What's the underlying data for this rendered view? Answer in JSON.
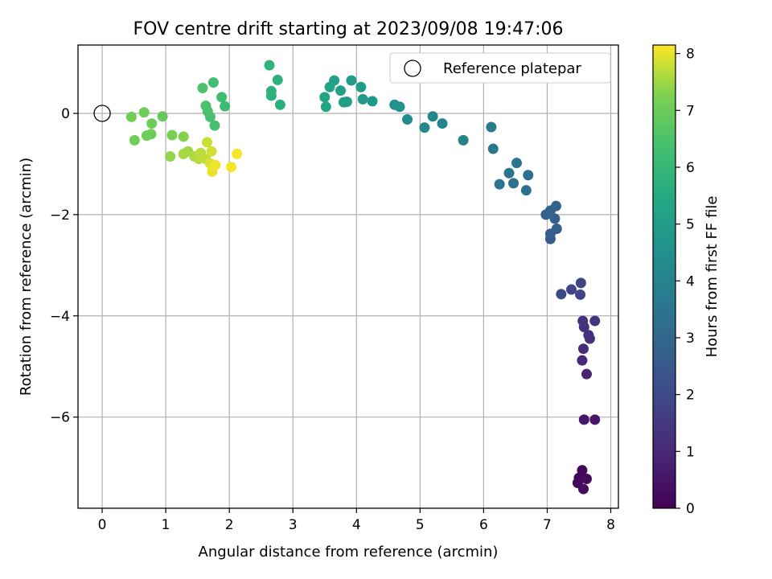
{
  "chart_data": {
    "type": "scatter",
    "title": "FOV centre drift starting at 2023/09/08 19:47:06",
    "xlabel": "Angular distance from reference (arcmin)",
    "ylabel": "Rotation from reference (arcmin)",
    "xlim": [
      -0.38,
      8.12
    ],
    "ylim": [
      -7.8,
      1.35
    ],
    "xticks": [
      0,
      1,
      2,
      3,
      4,
      5,
      6,
      7,
      8
    ],
    "yticks": [
      0,
      -2,
      -4,
      -6
    ],
    "grid": true,
    "legend": {
      "placement": "top-right",
      "entries": [
        "Reference platepar"
      ]
    },
    "reference_point": {
      "x": 0,
      "y": 0
    },
    "colorbar": {
      "label": "Hours from first FF file",
      "range": [
        0,
        8.15
      ],
      "ticks": [
        0,
        1,
        2,
        3,
        4,
        5,
        6,
        7,
        8
      ],
      "colormap": "viridis"
    },
    "series": [
      {
        "points": [
          {
            "x": 7.5,
            "y": -7.2,
            "h": 0.1
          },
          {
            "x": 7.55,
            "y": -7.05,
            "h": 0.15
          },
          {
            "x": 7.48,
            "y": -7.3,
            "h": 0.2
          },
          {
            "x": 7.62,
            "y": -7.22,
            "h": 0.25
          },
          {
            "x": 7.57,
            "y": -7.42,
            "h": 0.3
          },
          {
            "x": 7.58,
            "y": -6.05,
            "h": 0.55
          },
          {
            "x": 7.75,
            "y": -6.05,
            "h": 0.6
          },
          {
            "x": 7.62,
            "y": -5.15,
            "h": 0.9
          },
          {
            "x": 7.55,
            "y": -4.88,
            "h": 1.0
          },
          {
            "x": 7.57,
            "y": -4.65,
            "h": 1.1
          },
          {
            "x": 7.67,
            "y": -4.45,
            "h": 1.2
          },
          {
            "x": 7.65,
            "y": -4.38,
            "h": 1.25
          },
          {
            "x": 7.58,
            "y": -4.22,
            "h": 1.3
          },
          {
            "x": 7.56,
            "y": -4.1,
            "h": 1.35
          },
          {
            "x": 7.75,
            "y": -4.1,
            "h": 1.4
          },
          {
            "x": 7.52,
            "y": -3.58,
            "h": 1.8
          },
          {
            "x": 7.53,
            "y": -3.35,
            "h": 1.85
          },
          {
            "x": 7.38,
            "y": -3.48,
            "h": 1.9
          },
          {
            "x": 7.22,
            "y": -3.57,
            "h": 2.0
          },
          {
            "x": 7.05,
            "y": -2.48,
            "h": 2.6
          },
          {
            "x": 7.05,
            "y": -2.38,
            "h": 2.65
          },
          {
            "x": 7.15,
            "y": -2.28,
            "h": 2.7
          },
          {
            "x": 7.12,
            "y": -2.08,
            "h": 2.75
          },
          {
            "x": 6.98,
            "y": -2.0,
            "h": 2.8
          },
          {
            "x": 7.05,
            "y": -1.92,
            "h": 2.85
          },
          {
            "x": 7.14,
            "y": -1.83,
            "h": 2.9
          },
          {
            "x": 6.7,
            "y": -1.22,
            "h": 3.3
          },
          {
            "x": 6.67,
            "y": -1.52,
            "h": 3.35
          },
          {
            "x": 6.47,
            "y": -1.38,
            "h": 3.4
          },
          {
            "x": 6.4,
            "y": -1.18,
            "h": 3.45
          },
          {
            "x": 6.52,
            "y": -0.98,
            "h": 3.5
          },
          {
            "x": 6.25,
            "y": -1.4,
            "h": 3.55
          },
          {
            "x": 6.15,
            "y": -0.7,
            "h": 3.7
          },
          {
            "x": 6.12,
            "y": -0.27,
            "h": 3.75
          },
          {
            "x": 5.68,
            "y": -0.53,
            "h": 3.95
          },
          {
            "x": 5.35,
            "y": -0.2,
            "h": 4.1
          },
          {
            "x": 5.2,
            "y": -0.06,
            "h": 4.2
          },
          {
            "x": 5.07,
            "y": -0.28,
            "h": 4.25
          },
          {
            "x": 4.8,
            "y": -0.12,
            "h": 4.4
          },
          {
            "x": 4.68,
            "y": 0.13,
            "h": 4.55
          },
          {
            "x": 4.6,
            "y": 0.17,
            "h": 4.6
          },
          {
            "x": 4.25,
            "y": 0.24,
            "h": 4.85
          },
          {
            "x": 4.1,
            "y": 0.28,
            "h": 4.9
          },
          {
            "x": 4.07,
            "y": 0.52,
            "h": 4.95
          },
          {
            "x": 3.92,
            "y": 0.65,
            "h": 5.0
          },
          {
            "x": 3.85,
            "y": 0.23,
            "h": 5.05
          },
          {
            "x": 3.8,
            "y": 0.22,
            "h": 5.05
          },
          {
            "x": 3.75,
            "y": 0.45,
            "h": 5.1
          },
          {
            "x": 3.65,
            "y": 0.65,
            "h": 5.15
          },
          {
            "x": 3.58,
            "y": 0.52,
            "h": 5.2
          },
          {
            "x": 3.5,
            "y": 0.32,
            "h": 5.25
          },
          {
            "x": 3.52,
            "y": 0.13,
            "h": 5.3
          },
          {
            "x": 2.8,
            "y": 0.17,
            "h": 5.7
          },
          {
            "x": 2.76,
            "y": 0.66,
            "h": 5.75
          },
          {
            "x": 2.66,
            "y": 0.44,
            "h": 5.8
          },
          {
            "x": 2.66,
            "y": 0.35,
            "h": 5.8
          },
          {
            "x": 2.63,
            "y": 0.95,
            "h": 5.85
          },
          {
            "x": 1.93,
            "y": 0.14,
            "h": 6.2
          },
          {
            "x": 1.88,
            "y": 0.32,
            "h": 6.25
          },
          {
            "x": 1.75,
            "y": 0.61,
            "h": 6.3
          },
          {
            "x": 1.77,
            "y": -0.24,
            "h": 6.35
          },
          {
            "x": 1.7,
            "y": -0.07,
            "h": 6.4
          },
          {
            "x": 1.66,
            "y": 0.04,
            "h": 6.45
          },
          {
            "x": 1.63,
            "y": 0.15,
            "h": 6.45
          },
          {
            "x": 1.58,
            "y": 0.5,
            "h": 6.5
          },
          {
            "x": 0.95,
            "y": -0.06,
            "h": 6.9
          },
          {
            "x": 0.78,
            "y": -0.2,
            "h": 7.0
          },
          {
            "x": 0.77,
            "y": -0.41,
            "h": 7.0
          },
          {
            "x": 0.66,
            "y": 0.02,
            "h": 7.05
          },
          {
            "x": 0.7,
            "y": -0.44,
            "h": 7.05
          },
          {
            "x": 0.51,
            "y": -0.53,
            "h": 7.1
          },
          {
            "x": 0.46,
            "y": -0.07,
            "h": 7.1
          },
          {
            "x": 1.1,
            "y": -0.43,
            "h": 7.2
          },
          {
            "x": 1.28,
            "y": -0.46,
            "h": 7.3
          },
          {
            "x": 1.07,
            "y": -0.85,
            "h": 7.4
          },
          {
            "x": 1.35,
            "y": -0.75,
            "h": 7.5
          },
          {
            "x": 1.28,
            "y": -0.8,
            "h": 7.55
          },
          {
            "x": 1.45,
            "y": -0.85,
            "h": 7.6
          },
          {
            "x": 1.52,
            "y": -0.9,
            "h": 7.65
          },
          {
            "x": 1.55,
            "y": -0.78,
            "h": 7.7
          },
          {
            "x": 1.63,
            "y": -0.9,
            "h": 7.75
          },
          {
            "x": 1.65,
            "y": -0.57,
            "h": 7.8
          },
          {
            "x": 1.72,
            "y": -0.75,
            "h": 7.85
          },
          {
            "x": 1.7,
            "y": -0.99,
            "h": 7.9
          },
          {
            "x": 1.75,
            "y": -1.05,
            "h": 7.95
          },
          {
            "x": 1.73,
            "y": -1.15,
            "h": 8.0
          },
          {
            "x": 1.78,
            "y": -1.02,
            "h": 8.05
          },
          {
            "x": 2.03,
            "y": -1.06,
            "h": 8.08
          },
          {
            "x": 2.12,
            "y": -0.8,
            "h": 8.1
          }
        ]
      }
    ]
  }
}
